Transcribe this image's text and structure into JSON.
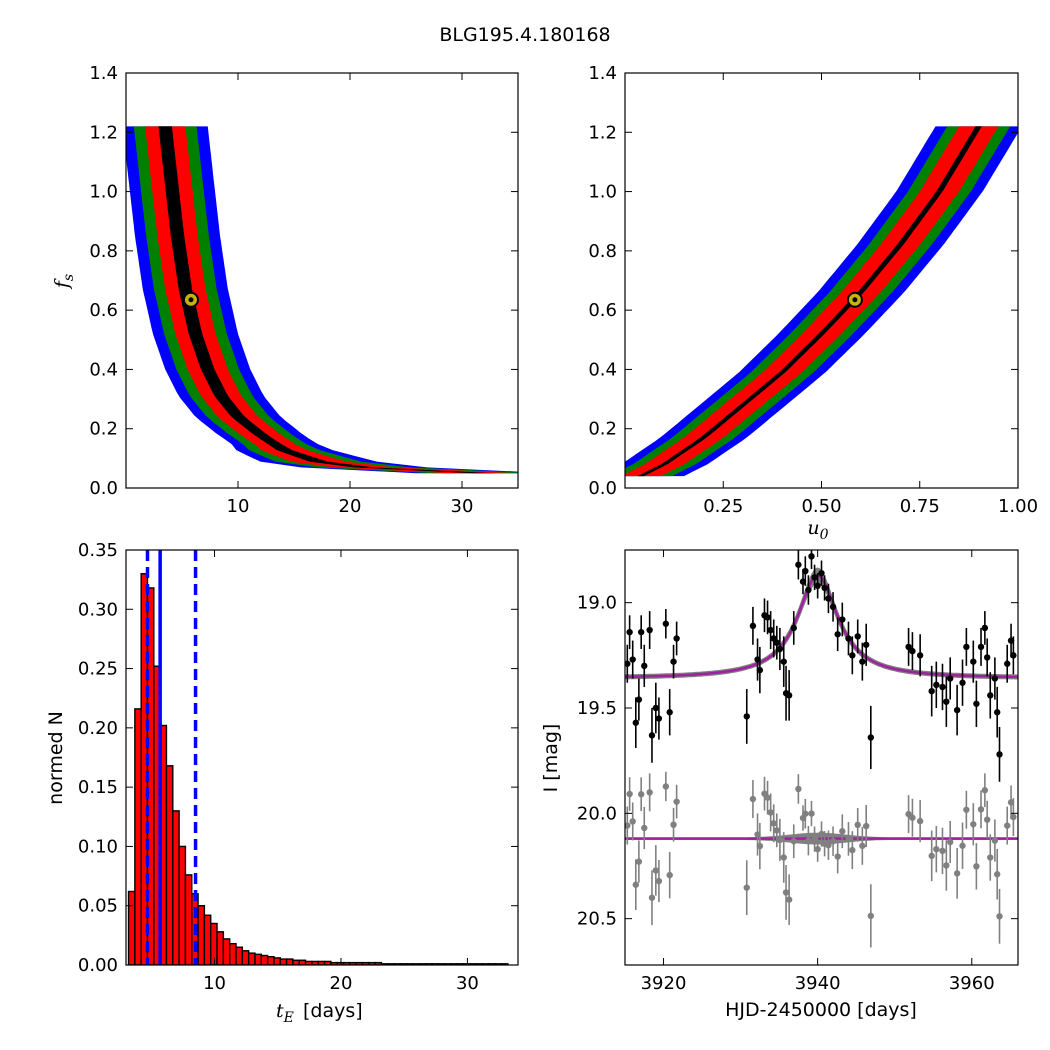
{
  "title": "BLG195.4.180168",
  "colors": {
    "level1": "#000000",
    "level2": "#ff0000",
    "level3": "#008000",
    "level4": "#0000ff",
    "best_fill": "#c8b400",
    "hist": "#ff0000",
    "vline": "#0000ff",
    "model": "#a020a0",
    "band": "#808080",
    "resid": "#808080"
  },
  "chart_data": [
    {
      "type": "heatmap",
      "panel": "tE-fs",
      "xlabel": "",
      "ylabel": "f_s",
      "xlim": [
        0,
        35
      ],
      "ylim": [
        0,
        1.4
      ],
      "x_ticks": [
        "10",
        "20",
        "30"
      ],
      "y_ticks": [
        "0.0",
        "0.2",
        "0.4",
        "0.6",
        "0.8",
        "1.0",
        "1.2",
        "1.4"
      ],
      "best_fit": {
        "x": 5.8,
        "y": 0.635
      },
      "ridge": [
        [
          3.5,
          1.22
        ],
        [
          4.0,
          1.05
        ],
        [
          4.6,
          0.85
        ],
        [
          5.3,
          0.67
        ],
        [
          6.2,
          0.52
        ],
        [
          7.3,
          0.4
        ],
        [
          8.5,
          0.31
        ],
        [
          10,
          0.24
        ],
        [
          12,
          0.18
        ],
        [
          14,
          0.13
        ],
        [
          17,
          0.09
        ],
        [
          21,
          0.07
        ],
        [
          26,
          0.06
        ],
        [
          32,
          0.05
        ]
      ],
      "level_widths": [
        0.6,
        1.8,
        2.8,
        3.8
      ],
      "grid": false
    },
    {
      "type": "heatmap",
      "panel": "u0-fs",
      "xlabel": "u_0",
      "ylabel": "",
      "xlim": [
        0,
        1.0
      ],
      "ylim": [
        0,
        1.4
      ],
      "x_ticks": [
        "0.25",
        "0.50",
        "0.75",
        "1.00"
      ],
      "y_ticks": [
        "0.0",
        "0.2",
        "0.4",
        "0.6",
        "0.8",
        "1.0",
        "1.2",
        "1.4"
      ],
      "best_fit": {
        "x": 0.585,
        "y": 0.635
      },
      "ridge": [
        [
          0.04,
          0.04
        ],
        [
          0.1,
          0.08
        ],
        [
          0.2,
          0.17
        ],
        [
          0.3,
          0.28
        ],
        [
          0.4,
          0.39
        ],
        [
          0.5,
          0.52
        ],
        [
          0.6,
          0.66
        ],
        [
          0.7,
          0.82
        ],
        [
          0.8,
          1.0
        ],
        [
          0.9,
          1.22
        ]
      ],
      "level_widths": [
        0.008,
        0.05,
        0.08,
        0.11
      ],
      "grid": false
    },
    {
      "type": "bar",
      "panel": "tE-histogram",
      "xlabel": "[days]",
      "ylabel": "normed N",
      "xlim": [
        3,
        34
      ],
      "ylim": [
        0,
        0.35
      ],
      "x_ticks": [
        "10",
        "20",
        "30"
      ],
      "y_ticks": [
        "0.00",
        "0.05",
        "0.10",
        "0.15",
        "0.20",
        "0.25",
        "0.30",
        "0.35"
      ],
      "bin_width": 0.5,
      "bin_start": 3.2,
      "values": [
        0.062,
        0.216,
        0.33,
        0.318,
        0.252,
        0.202,
        0.168,
        0.13,
        0.1,
        0.076,
        0.06,
        0.05,
        0.042,
        0.035,
        0.028,
        0.022,
        0.018,
        0.015,
        0.012,
        0.01,
        0.009,
        0.008,
        0.007,
        0.006,
        0.005,
        0.005,
        0.004,
        0.004,
        0.003,
        0.003,
        0.003,
        0.003,
        0.002,
        0.002,
        0.002,
        0.002,
        0.002,
        0.002,
        0.002,
        0.002,
        0.001,
        0.001,
        0.001,
        0.001,
        0.001,
        0.001,
        0.001,
        0.001,
        0.001,
        0.001,
        0.001,
        0.001,
        0.001,
        0.001,
        0.001,
        0.001,
        0.001,
        0.001,
        0.001,
        0.001
      ],
      "vlines": [
        {
          "x": 4.7,
          "style": "dashed"
        },
        {
          "x": 5.7,
          "style": "solid"
        },
        {
          "x": 8.5,
          "style": "dashed"
        }
      ],
      "grid": false
    },
    {
      "type": "scatter",
      "panel": "light-curve",
      "xlabel": "HJD-2450000 [days]",
      "ylabel": "I [mag]",
      "xlim": [
        3915,
        3966
      ],
      "ylim": [
        20.72,
        18.75
      ],
      "x_ticks": [
        "3920",
        "3940",
        "3960"
      ],
      "y_ticks": [
        "19.0",
        "19.5",
        "20.0",
        "20.5"
      ],
      "model": {
        "baseline": 19.36,
        "peak_time": 3940.0,
        "peak_mag": 18.87,
        "width": 3.2
      },
      "residual_offset": 20.12,
      "points": [
        [
          3915.3,
          19.29,
          0.09
        ],
        [
          3915.6,
          19.14,
          0.08
        ],
        [
          3916.0,
          19.27,
          0.09
        ],
        [
          3916.4,
          19.57,
          0.12
        ],
        [
          3916.8,
          19.46,
          0.1
        ],
        [
          3917.1,
          19.14,
          0.08
        ],
        [
          3917.5,
          19.3,
          0.1
        ],
        [
          3918.2,
          19.13,
          0.09
        ],
        [
          3918.5,
          19.63,
          0.13
        ],
        [
          3919.0,
          19.5,
          0.12
        ],
        [
          3919.4,
          19.55,
          0.1
        ],
        [
          3920.3,
          19.1,
          0.07
        ],
        [
          3920.8,
          19.52,
          0.11
        ],
        [
          3921.3,
          19.28,
          0.08
        ],
        [
          3921.7,
          19.17,
          0.08
        ],
        [
          3930.8,
          19.54,
          0.13
        ],
        [
          3931.6,
          19.11,
          0.09
        ],
        [
          3932.2,
          19.27,
          0.1
        ],
        [
          3932.5,
          19.32,
          0.11
        ],
        [
          3933.1,
          19.06,
          0.08
        ],
        [
          3933.5,
          19.07,
          0.08
        ],
        [
          3933.9,
          19.13,
          0.09
        ],
        [
          3934.3,
          19.17,
          0.09
        ],
        [
          3934.7,
          19.19,
          0.08
        ],
        [
          3935.1,
          19.22,
          0.1
        ],
        [
          3935.6,
          19.28,
          0.12
        ],
        [
          3935.9,
          19.43,
          0.13
        ],
        [
          3936.3,
          19.44,
          0.12
        ],
        [
          3936.9,
          19.12,
          0.08
        ],
        [
          3937.5,
          18.82,
          0.07
        ],
        [
          3938.1,
          18.9,
          0.06
        ],
        [
          3938.4,
          18.85,
          0.07
        ],
        [
          3938.8,
          18.94,
          0.07
        ],
        [
          3939.2,
          18.78,
          0.06
        ],
        [
          3939.6,
          18.88,
          0.06
        ],
        [
          3940.0,
          18.92,
          0.06
        ],
        [
          3940.5,
          18.86,
          0.06
        ],
        [
          3940.9,
          18.93,
          0.06
        ],
        [
          3941.4,
          18.98,
          0.07
        ],
        [
          3942.0,
          19.02,
          0.07
        ],
        [
          3942.6,
          19.15,
          0.08
        ],
        [
          3943.2,
          19.08,
          0.08
        ],
        [
          3944.0,
          19.17,
          0.08
        ],
        [
          3944.5,
          19.25,
          0.09
        ],
        [
          3945.2,
          19.16,
          0.08
        ],
        [
          3945.8,
          19.28,
          0.09
        ],
        [
          3946.3,
          19.2,
          0.1
        ],
        [
          3946.9,
          19.64,
          0.15
        ],
        [
          3951.8,
          19.21,
          0.09
        ],
        [
          3952.3,
          19.23,
          0.09
        ],
        [
          3953.3,
          19.25,
          0.1
        ],
        [
          3954.8,
          19.42,
          0.12
        ],
        [
          3955.4,
          19.39,
          0.11
        ],
        [
          3956.2,
          19.4,
          0.11
        ],
        [
          3956.7,
          19.47,
          0.12
        ],
        [
          3957.2,
          19.36,
          0.1
        ],
        [
          3958.1,
          19.51,
          0.12
        ],
        [
          3958.8,
          19.38,
          0.11
        ],
        [
          3959.3,
          19.21,
          0.09
        ],
        [
          3960.2,
          19.28,
          0.1
        ],
        [
          3960.6,
          19.48,
          0.11
        ],
        [
          3961.2,
          19.21,
          0.09
        ],
        [
          3961.7,
          19.12,
          0.08
        ],
        [
          3962.0,
          19.26,
          0.09
        ],
        [
          3962.4,
          19.44,
          0.11
        ],
        [
          3963.0,
          19.36,
          0.1
        ],
        [
          3963.3,
          19.52,
          0.12
        ],
        [
          3963.6,
          19.72,
          0.13
        ],
        [
          3964.6,
          19.29,
          0.09
        ],
        [
          3965.1,
          19.18,
          0.08
        ],
        [
          3965.4,
          19.25,
          0.09
        ]
      ],
      "grid": false
    }
  ]
}
